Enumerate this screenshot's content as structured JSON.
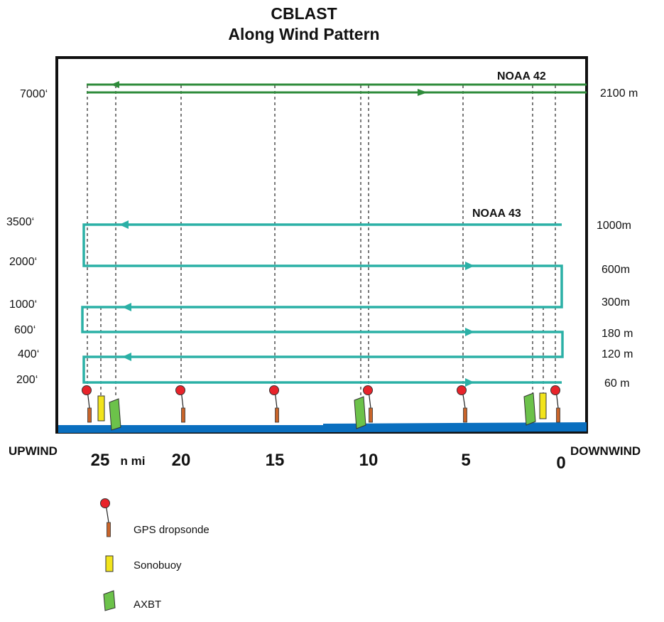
{
  "title": {
    "line1": "CBLAST",
    "line2": "Along Wind Pattern"
  },
  "aircraft": [
    {
      "label": "NOAA 42",
      "color": "#2e8b3a"
    },
    {
      "label": "NOAA 43",
      "color": "#2bb0a6"
    }
  ],
  "altitudes": {
    "feet": [
      "7000‘",
      "3500‘",
      "2000‘",
      "1000‘",
      "600‘",
      "400‘",
      "200‘"
    ],
    "meters": [
      "2100 m",
      "1000m",
      "600m",
      "300m",
      "180 m",
      "120 m",
      "60 m"
    ]
  },
  "distance_axis": {
    "ticks": [
      "25",
      "20",
      "15",
      "10",
      "5",
      "0"
    ],
    "unit": "n mi",
    "upwind_label": "UPWIND",
    "downwind_label": "DOWNWIND"
  },
  "legend": [
    {
      "label": "GPS dropsonde",
      "icon": "dropsonde-icon"
    },
    {
      "label": "Sonobuoy",
      "icon": "sonobuoy-icon"
    },
    {
      "label": "AXBT",
      "icon": "axbt-icon"
    }
  ],
  "colors": {
    "ocean": "#0a6fbf",
    "noaa42_track": "#2e8b3a",
    "noaa43_track": "#2bb0a6",
    "dropsonde_ball": "#e8232a",
    "dropsonde_body": "#c8642a",
    "sonobuoy": "#f2e41c",
    "axbt": "#6cc24a"
  }
}
